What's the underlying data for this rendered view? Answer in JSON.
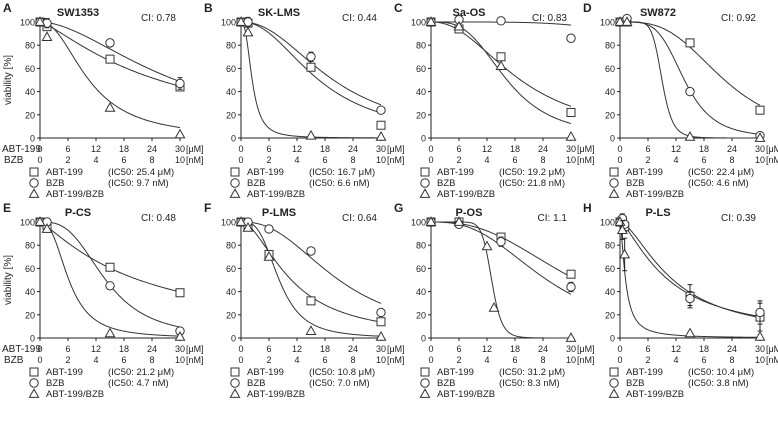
{
  "figure": {
    "y_axis_label": "viability [%]",
    "row_label_abt": "ABT-199",
    "row_label_bzb": "BZB",
    "unit_um": "[μM]",
    "unit_nm": "[nM]",
    "abt_ticks": [
      "0",
      "6",
      "12",
      "18",
      "24",
      "30"
    ],
    "bzb_ticks": [
      "0",
      "2",
      "4",
      "6",
      "8",
      "10"
    ],
    "y_ticks": [
      "0",
      "20",
      "40",
      "60",
      "80",
      "100"
    ],
    "colors": {
      "ink": "#222222",
      "marker_fill": "#ffffff"
    }
  },
  "chart_data": [
    {
      "type": "line",
      "panel": "A",
      "title": "SW1353",
      "ci": "CI: 0.78",
      "ylim": [
        0,
        100
      ],
      "xlim": [
        0,
        30
      ],
      "legend": [
        {
          "marker": "square",
          "label": "ABT-199",
          "ic50": "(IC50: 25.4 μM)"
        },
        {
          "marker": "circle",
          "label": "BZB",
          "ic50": "(IC50: 9.7 nM)"
        },
        {
          "marker": "triangle",
          "label": "ABT-199/BZB",
          "ic50": ""
        }
      ],
      "series": [
        {
          "name": "ABT-199",
          "marker": "square",
          "curve": {
            "ic50": 25.4,
            "hill": 1.3
          },
          "points": [
            {
              "x": 0,
              "y": 100
            },
            {
              "x": 1.5,
              "y": 96
            },
            {
              "x": 15,
              "y": 68
            },
            {
              "x": 30,
              "y": 44
            }
          ]
        },
        {
          "name": "BZB",
          "marker": "circle",
          "curve": {
            "ic50": 29.1,
            "hill": 1.8
          },
          "points": [
            {
              "x": 0,
              "y": 100
            },
            {
              "x": 1.5,
              "y": 99,
              "err": 4
            },
            {
              "x": 15,
              "y": 82,
              "err": 3
            },
            {
              "x": 30,
              "y": 47,
              "err": 5
            }
          ]
        },
        {
          "name": "ABT-199/BZB",
          "marker": "triangle",
          "curve": {
            "ic50": 10.5,
            "hill": 2.2
          },
          "points": [
            {
              "x": 0,
              "y": 100
            },
            {
              "x": 1.5,
              "y": 87
            },
            {
              "x": 15,
              "y": 26
            },
            {
              "x": 30,
              "y": 3
            }
          ]
        }
      ]
    },
    {
      "type": "line",
      "panel": "B",
      "title": "SK-LMS",
      "ci": "CI: 0.44",
      "ylim": [
        0,
        100
      ],
      "xlim": [
        0,
        30
      ],
      "legend": [
        {
          "marker": "square",
          "label": "ABT-199",
          "ic50": "(IC50: 16.7 μM)"
        },
        {
          "marker": "circle",
          "label": "BZB",
          "ic50": "(IC50: 6.6 nM)"
        },
        {
          "marker": "triangle",
          "label": "ABT-199/BZB",
          "ic50": ""
        }
      ],
      "series": [
        {
          "name": "ABT-199",
          "marker": "square",
          "curve": {
            "ic50": 16.7,
            "hill": 2.2
          },
          "points": [
            {
              "x": 0,
              "y": 100
            },
            {
              "x": 1.5,
              "y": 99
            },
            {
              "x": 15,
              "y": 61
            },
            {
              "x": 30,
              "y": 11
            }
          ]
        },
        {
          "name": "BZB",
          "marker": "circle",
          "curve": {
            "ic50": 19.8,
            "hill": 2.2
          },
          "points": [
            {
              "x": 0,
              "y": 100
            },
            {
              "x": 1.5,
              "y": 100,
              "err": 4
            },
            {
              "x": 15,
              "y": 70,
              "err": 4
            },
            {
              "x": 30,
              "y": 24
            }
          ]
        },
        {
          "name": "ABT-199/BZB",
          "marker": "triangle",
          "curve": {
            "ic50": 2.4,
            "hill": 2.6
          },
          "points": [
            {
              "x": 0,
              "y": 100
            },
            {
              "x": 1.5,
              "y": 91
            },
            {
              "x": 15,
              "y": 2
            },
            {
              "x": 30,
              "y": 1
            }
          ]
        }
      ]
    },
    {
      "type": "line",
      "panel": "C",
      "title": "Sa-OS",
      "ci": "CI: 0.83",
      "ylim": [
        0,
        100
      ],
      "xlim": [
        0,
        30
      ],
      "legend": [
        {
          "marker": "square",
          "label": "ABT-199",
          "ic50": "(IC50: 19.2 μM)"
        },
        {
          "marker": "circle",
          "label": "BZB",
          "ic50": "(IC50: 21.8 nM)"
        },
        {
          "marker": "triangle",
          "label": "ABT-199/BZB",
          "ic50": ""
        }
      ],
      "series": [
        {
          "name": "ABT-199",
          "marker": "square",
          "curve": {
            "ic50": 19.2,
            "hill": 2.2
          },
          "points": [
            {
              "x": 0,
              "y": 100
            },
            {
              "x": 6,
              "y": 94
            },
            {
              "x": 15,
              "y": 70
            },
            {
              "x": 30,
              "y": 22
            }
          ]
        },
        {
          "name": "BZB",
          "marker": "circle",
          "curve": {
            "ic50": 65.4,
            "hill": 4.6
          },
          "points": [
            {
              "x": 0,
              "y": 100
            },
            {
              "x": 6,
              "y": 102,
              "err": 3
            },
            {
              "x": 15,
              "y": 101,
              "err": 3
            },
            {
              "x": 30,
              "y": 86,
              "err": 3
            }
          ]
        },
        {
          "name": "ABT-199/BZB",
          "marker": "triangle",
          "curve": {
            "ic50": 16.3,
            "hill": 3.2
          },
          "points": [
            {
              "x": 0,
              "y": 100
            },
            {
              "x": 6,
              "y": 96
            },
            {
              "x": 15,
              "y": 62
            },
            {
              "x": 30,
              "y": 1
            }
          ]
        }
      ]
    },
    {
      "type": "line",
      "panel": "D",
      "title": "SW872",
      "ci": "CI: 0.92",
      "ylim": [
        0,
        100
      ],
      "xlim": [
        0,
        30
      ],
      "legend": [
        {
          "marker": "square",
          "label": "ABT-199",
          "ic50": "(IC50: 22.4 μM)"
        },
        {
          "marker": "circle",
          "label": "BZB",
          "ic50": "(IC50: 4.6 nM)"
        },
        {
          "marker": "triangle",
          "label": "ABT-199/BZB",
          "ic50": ""
        }
      ],
      "series": [
        {
          "name": "ABT-199",
          "marker": "square",
          "curve": {
            "ic50": 22.4,
            "hill": 3.2
          },
          "points": [
            {
              "x": 0,
              "y": 100
            },
            {
              "x": 1.5,
              "y": 100
            },
            {
              "x": 15,
              "y": 82
            },
            {
              "x": 30,
              "y": 24
            }
          ]
        },
        {
          "name": "BZB",
          "marker": "circle",
          "curve": {
            "ic50": 13.8,
            "hill": 4.4
          },
          "points": [
            {
              "x": 0,
              "y": 100
            },
            {
              "x": 1.5,
              "y": 103,
              "err": 3
            },
            {
              "x": 15,
              "y": 40
            },
            {
              "x": 30,
              "y": 2
            }
          ]
        },
        {
          "name": "ABT-199/BZB",
          "marker": "triangle",
          "curve": {
            "ic50": 9.0,
            "hill": 8.0
          },
          "points": [
            {
              "x": 0,
              "y": 100
            },
            {
              "x": 1.5,
              "y": 100
            },
            {
              "x": 15,
              "y": 1
            },
            {
              "x": 30,
              "y": 0
            }
          ]
        }
      ]
    },
    {
      "type": "line",
      "panel": "E",
      "title": "P-CS",
      "ci": "CI: 0.48",
      "ylim": [
        0,
        100
      ],
      "xlim": [
        0,
        30
      ],
      "legend": [
        {
          "marker": "square",
          "label": "ABT-199",
          "ic50": "(IC50: 21.2 μM)"
        },
        {
          "marker": "circle",
          "label": "BZB",
          "ic50": "(IC50: 4.7 nM)"
        },
        {
          "marker": "triangle",
          "label": "ABT-199/BZB",
          "ic50": ""
        }
      ],
      "series": [
        {
          "name": "ABT-199",
          "marker": "square",
          "curve": {
            "ic50": 21.2,
            "hill": 1.2
          },
          "points": [
            {
              "x": 0,
              "y": 100
            },
            {
              "x": 1.5,
              "y": 97
            },
            {
              "x": 15,
              "y": 61
            },
            {
              "x": 30,
              "y": 39
            }
          ]
        },
        {
          "name": "BZB",
          "marker": "circle",
          "curve": {
            "ic50": 14.1,
            "hill": 3.0
          },
          "points": [
            {
              "x": 0,
              "y": 100
            },
            {
              "x": 1.5,
              "y": 100
            },
            {
              "x": 15,
              "y": 45
            },
            {
              "x": 30,
              "y": 6
            }
          ]
        },
        {
          "name": "ABT-199/BZB",
          "marker": "triangle",
          "curve": {
            "ic50": 6.2,
            "hill": 2.6
          },
          "points": [
            {
              "x": 0,
              "y": 100
            },
            {
              "x": 1.5,
              "y": 94
            },
            {
              "x": 15,
              "y": 4
            },
            {
              "x": 30,
              "y": 1
            }
          ]
        }
      ]
    },
    {
      "type": "line",
      "panel": "F",
      "title": "P-LMS",
      "ci": "CI: 0.64",
      "ylim": [
        0,
        100
      ],
      "xlim": [
        0,
        30
      ],
      "legend": [
        {
          "marker": "square",
          "label": "ABT-199",
          "ic50": "(IC50: 10.8 μM)"
        },
        {
          "marker": "circle",
          "label": "BZB",
          "ic50": "(IC50: 7.0 nM)"
        },
        {
          "marker": "triangle",
          "label": "ABT-199/BZB",
          "ic50": ""
        }
      ],
      "series": [
        {
          "name": "ABT-199",
          "marker": "square",
          "curve": {
            "ic50": 10.8,
            "hill": 1.8
          },
          "points": [
            {
              "x": 0,
              "y": 100
            },
            {
              "x": 1.5,
              "y": 97
            },
            {
              "x": 6,
              "y": 72
            },
            {
              "x": 15,
              "y": 32
            },
            {
              "x": 30,
              "y": 14
            }
          ]
        },
        {
          "name": "BZB",
          "marker": "circle",
          "curve": {
            "ic50": 21.0,
            "hill": 2.4
          },
          "points": [
            {
              "x": 0,
              "y": 100
            },
            {
              "x": 1.5,
              "y": 100
            },
            {
              "x": 6,
              "y": 94
            },
            {
              "x": 15,
              "y": 75
            },
            {
              "x": 30,
              "y": 22
            }
          ]
        },
        {
          "name": "ABT-199/BZB",
          "marker": "triangle",
          "curve": {
            "ic50": 8.2,
            "hill": 3.2
          },
          "points": [
            {
              "x": 0,
              "y": 100
            },
            {
              "x": 1.5,
              "y": 95
            },
            {
              "x": 6,
              "y": 70
            },
            {
              "x": 15,
              "y": 6
            },
            {
              "x": 30,
              "y": 1
            }
          ]
        }
      ]
    },
    {
      "type": "line",
      "panel": "G",
      "title": "P-OS",
      "ci": "CI: 1.1",
      "ylim": [
        0,
        100
      ],
      "xlim": [
        0,
        30
      ],
      "legend": [
        {
          "marker": "square",
          "label": "ABT-199",
          "ic50": "(IC50: 31.2 μM)"
        },
        {
          "marker": "circle",
          "label": "BZB",
          "ic50": "(IC50: 8.3 nM)"
        },
        {
          "marker": "triangle",
          "label": "ABT-199/BZB",
          "ic50": ""
        }
      ],
      "series": [
        {
          "name": "ABT-199",
          "marker": "square",
          "curve": {
            "ic50": 31.2,
            "hill": 2.6
          },
          "points": [
            {
              "x": 0,
              "y": 100
            },
            {
              "x": 6,
              "y": 100
            },
            {
              "x": 15,
              "y": 87
            },
            {
              "x": 30,
              "y": 55
            }
          ]
        },
        {
          "name": "BZB",
          "marker": "circle",
          "curve": {
            "ic50": 24.9,
            "hill": 2.7
          },
          "points": [
            {
              "x": 0,
              "y": 100
            },
            {
              "x": 6,
              "y": 98,
              "err": 3
            },
            {
              "x": 15,
              "y": 83,
              "err": 4
            },
            {
              "x": 30,
              "y": 44,
              "err": 4
            }
          ]
        },
        {
          "name": "ABT-199/BZB",
          "marker": "triangle",
          "curve": {
            "ic50": 13.0,
            "hill": 12.0
          },
          "points": [
            {
              "x": 0,
              "y": 100
            },
            {
              "x": 6,
              "y": 100
            },
            {
              "x": 12,
              "y": 79
            },
            {
              "x": 13.5,
              "y": 26
            },
            {
              "x": 30,
              "y": 0
            }
          ]
        }
      ]
    },
    {
      "type": "line",
      "panel": "H",
      "title": "P-LS",
      "ci": "CI: 0.39",
      "ylim": [
        0,
        100
      ],
      "xlim": [
        0,
        30
      ],
      "legend": [
        {
          "marker": "square",
          "label": "ABT-199",
          "ic50": "(IC50: 10.4 μM)"
        },
        {
          "marker": "circle",
          "label": "BZB",
          "ic50": "(IC50: 3.8 nM)"
        },
        {
          "marker": "triangle",
          "label": "ABT-199/BZB",
          "ic50": ""
        }
      ],
      "series": [
        {
          "name": "ABT-199",
          "marker": "square",
          "curve": {
            "ic50": 10.4,
            "hill": 1.4
          },
          "points": [
            {
              "x": 0,
              "y": 100
            },
            {
              "x": 0.5,
              "y": 101,
              "err": 3
            },
            {
              "x": 1,
              "y": 96,
              "err": 4
            },
            {
              "x": 15,
              "y": 36,
              "err": 10
            },
            {
              "x": 30,
              "y": 18,
              "err": 12
            }
          ]
        },
        {
          "name": "BZB",
          "marker": "circle",
          "curve": {
            "ic50": 11.4,
            "hill": 1.6
          },
          "points": [
            {
              "x": 0,
              "y": 100
            },
            {
              "x": 0.5,
              "y": 103,
              "err": 4
            },
            {
              "x": 1,
              "y": 98
            },
            {
              "x": 15,
              "y": 34,
              "err": 6
            },
            {
              "x": 30,
              "y": 22,
              "err": 10
            }
          ]
        },
        {
          "name": "ABT-199/BZB",
          "marker": "triangle",
          "curve": {
            "ic50": 1.2,
            "hill": 1.6
          },
          "points": [
            {
              "x": 0,
              "y": 100
            },
            {
              "x": 0.5,
              "y": 93,
              "err": 8
            },
            {
              "x": 1,
              "y": 72,
              "err": 14
            },
            {
              "x": 15,
              "y": 4
            },
            {
              "x": 30,
              "y": 1
            }
          ]
        }
      ]
    }
  ]
}
